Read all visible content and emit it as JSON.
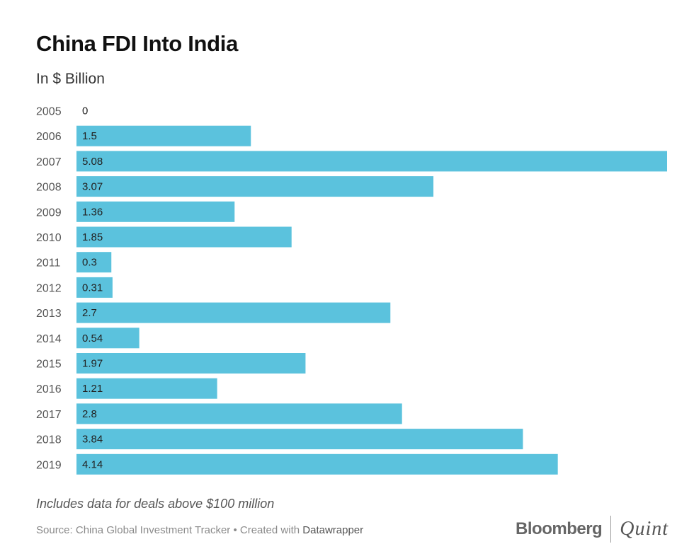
{
  "header": {
    "title": "China FDI Into India",
    "subtitle": "In $ Billion"
  },
  "footer": {
    "note": "Includes data for deals above $100 million",
    "source_prefix": "Source: China Global Investment Tracker • Created with ",
    "source_tool": "Datawrapper"
  },
  "logo": {
    "primary": "Bloomberg",
    "secondary": "Quint"
  },
  "colors": {
    "bar": "#5bc2dd"
  },
  "chart_data": {
    "type": "bar",
    "orientation": "horizontal",
    "title": "China FDI Into India",
    "subtitle": "In $ Billion",
    "categories": [
      "2005",
      "2006",
      "2007",
      "2008",
      "2009",
      "2010",
      "2011",
      "2012",
      "2013",
      "2014",
      "2015",
      "2016",
      "2017",
      "2018",
      "2019"
    ],
    "values": [
      0,
      1.5,
      5.08,
      3.07,
      1.36,
      1.85,
      0.3,
      0.31,
      2.7,
      0.54,
      1.97,
      1.21,
      2.8,
      3.84,
      4.14
    ],
    "value_labels": [
      "0",
      "1.5",
      "5.08",
      "3.07",
      "1.36",
      "1.85",
      "0.3",
      "0.31",
      "2.7",
      "0.54",
      "1.97",
      "1.21",
      "2.8",
      "3.84",
      "4.14"
    ],
    "xlim": [
      0,
      5.08
    ],
    "grid": false,
    "legend": "none"
  }
}
